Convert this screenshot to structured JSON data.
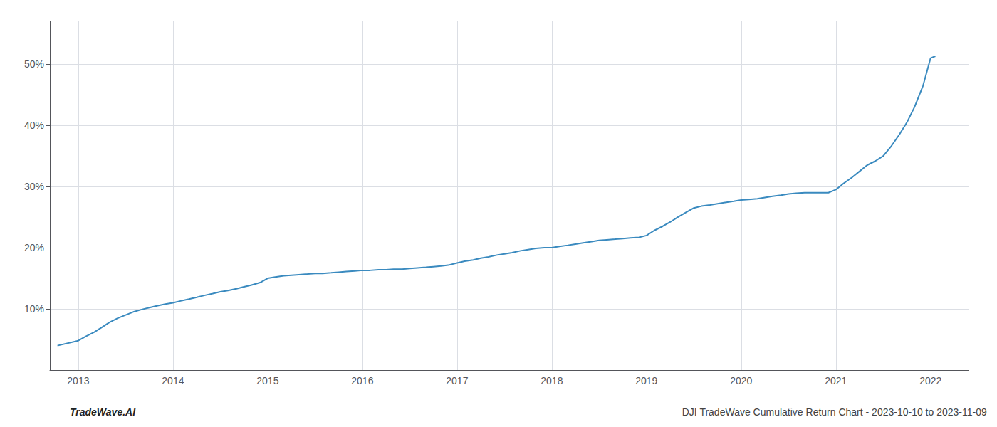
{
  "chart_data": {
    "type": "line",
    "annotations": [
      "TradeWave.AI",
      "DJI TradeWave Cumulative Return Chart - 2023-10-10 to 2023-11-09"
    ],
    "color": "#3a8abf",
    "grid": true,
    "x": [
      2012.78,
      2013.0,
      2013.08,
      2013.17,
      2013.25,
      2013.33,
      2013.42,
      2013.5,
      2013.58,
      2013.67,
      2013.75,
      2013.83,
      2013.92,
      2014.0,
      2014.08,
      2014.17,
      2014.25,
      2014.33,
      2014.42,
      2014.5,
      2014.58,
      2014.67,
      2014.75,
      2014.83,
      2014.92,
      2015.0,
      2015.08,
      2015.17,
      2015.25,
      2015.33,
      2015.42,
      2015.5,
      2015.58,
      2015.67,
      2015.75,
      2015.83,
      2015.92,
      2016.0,
      2016.08,
      2016.17,
      2016.25,
      2016.33,
      2016.42,
      2016.5,
      2016.58,
      2016.67,
      2016.75,
      2016.83,
      2016.92,
      2017.0,
      2017.08,
      2017.17,
      2017.25,
      2017.33,
      2017.42,
      2017.5,
      2017.58,
      2017.67,
      2017.75,
      2017.83,
      2017.92,
      2018.0,
      2018.08,
      2018.17,
      2018.25,
      2018.33,
      2018.42,
      2018.5,
      2018.58,
      2018.67,
      2018.75,
      2018.83,
      2018.92,
      2019.0,
      2019.08,
      2019.17,
      2019.25,
      2019.33,
      2019.42,
      2019.5,
      2019.58,
      2019.67,
      2019.75,
      2019.83,
      2019.92,
      2020.0,
      2020.08,
      2020.17,
      2020.25,
      2020.33,
      2020.42,
      2020.5,
      2020.58,
      2020.67,
      2020.75,
      2020.83,
      2020.92,
      2021.0,
      2021.08,
      2021.17,
      2021.25,
      2021.33,
      2021.42,
      2021.5,
      2021.58,
      2021.67,
      2021.75,
      2021.83,
      2021.92,
      2022.0,
      2022.05
    ],
    "values": [
      4.0,
      4.8,
      5.5,
      6.2,
      7.0,
      7.8,
      8.5,
      9.0,
      9.5,
      9.9,
      10.2,
      10.5,
      10.8,
      11.0,
      11.3,
      11.6,
      11.9,
      12.2,
      12.5,
      12.8,
      13.0,
      13.3,
      13.6,
      13.9,
      14.3,
      15.0,
      15.2,
      15.4,
      15.5,
      15.6,
      15.7,
      15.8,
      15.8,
      15.9,
      16.0,
      16.1,
      16.2,
      16.3,
      16.3,
      16.4,
      16.4,
      16.5,
      16.5,
      16.6,
      16.7,
      16.8,
      16.9,
      17.0,
      17.2,
      17.5,
      17.8,
      18.0,
      18.3,
      18.5,
      18.8,
      19.0,
      19.2,
      19.5,
      19.7,
      19.9,
      20.0,
      20.0,
      20.2,
      20.4,
      20.6,
      20.8,
      21.0,
      21.2,
      21.3,
      21.4,
      21.5,
      21.6,
      21.7,
      22.0,
      22.8,
      23.5,
      24.2,
      25.0,
      25.8,
      26.5,
      26.8,
      27.0,
      27.2,
      27.4,
      27.6,
      27.8,
      27.9,
      28.0,
      28.2,
      28.4,
      28.6,
      28.8,
      28.9,
      29.0,
      29.0,
      29.0,
      29.0,
      29.5,
      30.5,
      31.5,
      32.5,
      33.5,
      34.2,
      35.0,
      36.5,
      38.5,
      40.5,
      43.0,
      46.5,
      51.0,
      51.3
    ],
    "xlim": [
      2012.7,
      2022.4
    ],
    "ylim": [
      0,
      57
    ],
    "xticks": [
      2013,
      2014,
      2015,
      2016,
      2017,
      2018,
      2019,
      2020,
      2021,
      2022
    ],
    "yticks": [
      {
        "value": 10,
        "label": "10%"
      },
      {
        "value": 20,
        "label": "20%"
      },
      {
        "value": 30,
        "label": "30%"
      },
      {
        "value": 40,
        "label": "40%"
      },
      {
        "value": 50,
        "label": "50%"
      }
    ]
  }
}
